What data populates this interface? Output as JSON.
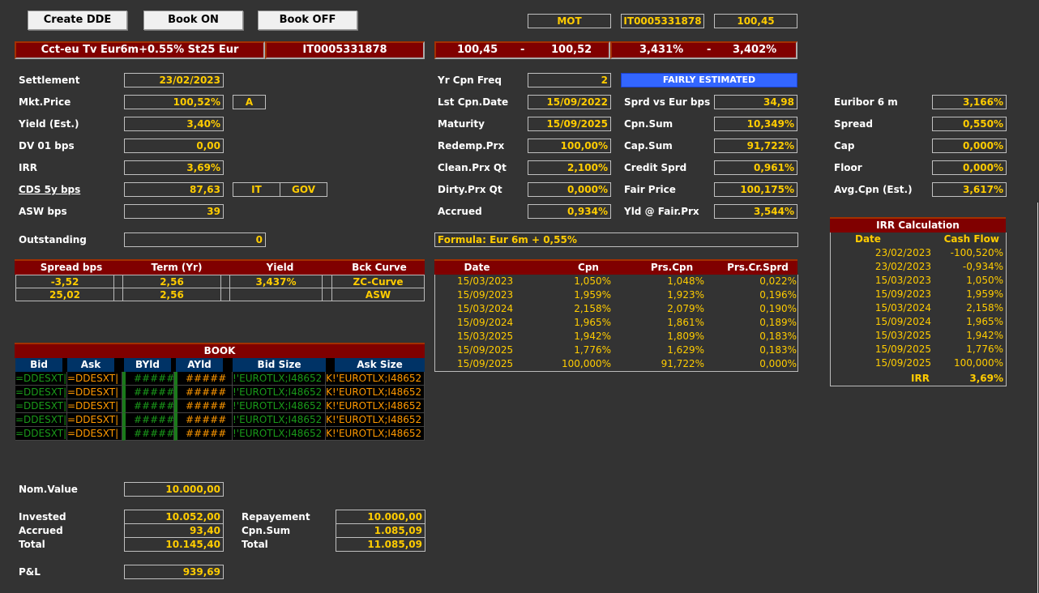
{
  "toolbar": {
    "create_dde": "Create DDE",
    "book_on": "Book ON",
    "book_off": "Book OFF"
  },
  "market": {
    "venue": "MOT",
    "isin": "IT0005331878",
    "last": "100,45"
  },
  "header": {
    "name": "Cct-eu Tv Eur6m+0.55% St25 Eur",
    "isin": "IT0005331878",
    "bid": "100,45",
    "ask": "100,52",
    "sep": "-",
    "bid_yield": "3,431%",
    "ask_yield": "3,402%"
  },
  "left": {
    "settlement": {
      "label": "Settlement",
      "value": "23/02/2023"
    },
    "mkt_price": {
      "label": "Mkt.Price",
      "value": "100,52%",
      "side": "A"
    },
    "yield": {
      "label": "Yield (Est.)",
      "value": "3,40%"
    },
    "dv01": {
      "label": "DV 01 bps",
      "value": "0,00"
    },
    "irr": {
      "label": "IRR",
      "value": "3,69%"
    },
    "cds": {
      "label": "CDS 5y bps",
      "value": "87,63",
      "country": "IT",
      "sector": "GOV"
    },
    "asw": {
      "label": "ASW bps",
      "value": "39"
    },
    "outstanding": {
      "label": "Outstanding",
      "value": "0"
    }
  },
  "middle": {
    "cpn_freq": {
      "label": "Yr Cpn Freq",
      "value": "2"
    },
    "status": "FAIRLY ESTIMATED",
    "last_cpn": {
      "label": "Lst Cpn.Date",
      "value": "15/09/2022"
    },
    "maturity": {
      "label": "Maturity",
      "value": "15/09/2025"
    },
    "redemp": {
      "label": "Redemp.Prx",
      "value": "100,00%"
    },
    "clean": {
      "label": "Clean.Prx Qt",
      "value": "2,100%"
    },
    "dirty": {
      "label": "Dirty.Prx Qt",
      "value": "0,000%"
    },
    "accrued": {
      "label": "Accrued",
      "value": "0,934%"
    },
    "sprd_eur": {
      "label": "Sprd vs Eur bps",
      "value": "34,98"
    },
    "cpn_sum": {
      "label": "Cpn.Sum",
      "value": "10,349%"
    },
    "cap_sum": {
      "label": "Cap.Sum",
      "value": "91,722%"
    },
    "credit": {
      "label": "Credit Sprd",
      "value": "0,961%"
    },
    "fair": {
      "label": "Fair Price",
      "value": "100,175%"
    },
    "yld_fair": {
      "label": "Yld @ Fair.Prx",
      "value": "3,544%"
    },
    "formula": "Formula: Eur 6m + 0,55%"
  },
  "right": {
    "euribor": {
      "label": "Euribor 6 m",
      "value": "3,166%"
    },
    "spread": {
      "label": "Spread",
      "value": "0,550%"
    },
    "cap": {
      "label": "Cap",
      "value": "0,000%"
    },
    "floor": {
      "label": "Floor",
      "value": "0,000%"
    },
    "avg_cpn": {
      "label": "Avg.Cpn (Est.)",
      "value": "3,617%"
    }
  },
  "spread_table": {
    "headers": [
      "Spread bps",
      "Term (Yr)",
      "Yield",
      "Bck Curve"
    ],
    "rows": [
      [
        "-3,52",
        "2,56",
        "3,437%",
        "ZC-Curve"
      ],
      [
        "25,02",
        "2,56",
        "",
        "ASW"
      ]
    ]
  },
  "book": {
    "title": "BOOK",
    "headers": [
      "Bid",
      "Ask",
      "BYld",
      "AYld",
      "Bid Size",
      "Ask Size"
    ],
    "row": [
      "=DDESXT|",
      "=DDESXT|",
      "#####",
      "#####",
      "!'EUROTLX;I48652",
      "K!'EUROTLX;I48652"
    ]
  },
  "cpn_table": {
    "headers": [
      "Date",
      "Cpn",
      "Prs.Cpn",
      "Prs.Cr.Sprd"
    ],
    "rows": [
      [
        "15/03/2023",
        "1,050%",
        "1,048%",
        "0,022%"
      ],
      [
        "15/09/2023",
        "1,959%",
        "1,923%",
        "0,196%"
      ],
      [
        "15/03/2024",
        "2,158%",
        "2,079%",
        "0,190%"
      ],
      [
        "15/09/2024",
        "1,965%",
        "1,861%",
        "0,189%"
      ],
      [
        "15/03/2025",
        "1,942%",
        "1,809%",
        "0,183%"
      ],
      [
        "15/09/2025",
        "1,776%",
        "1,629%",
        "0,183%"
      ],
      [
        "15/09/2025",
        "100,000%",
        "91,722%",
        "0,000%"
      ]
    ]
  },
  "irr_table": {
    "title": "IRR Calculation",
    "headers": [
      "Date",
      "Cash Flow"
    ],
    "rows": [
      [
        "23/02/2023",
        "-100,520%"
      ],
      [
        "23/02/2023",
        "-0,934%"
      ],
      [
        "15/03/2023",
        "1,050%"
      ],
      [
        "15/09/2023",
        "1,959%"
      ],
      [
        "15/03/2024",
        "2,158%"
      ],
      [
        "15/09/2024",
        "1,965%"
      ],
      [
        "15/03/2025",
        "1,942%"
      ],
      [
        "15/09/2025",
        "1,776%"
      ],
      [
        "15/09/2025",
        "100,000%"
      ]
    ],
    "total_label": "IRR",
    "total": "3,69%"
  },
  "pnl": {
    "nom": {
      "label": "Nom.Value",
      "value": "10.000,00"
    },
    "invested": {
      "label": "Invested",
      "value": "10.052,00"
    },
    "accrued": {
      "label": "Accrued",
      "value": "93,40"
    },
    "total_in": {
      "label": "Total",
      "value": "10.145,40"
    },
    "repay": {
      "label": "Repayement",
      "value": "10.000,00"
    },
    "cpn_sum": {
      "label": "Cpn.Sum",
      "value": "1.085,09"
    },
    "total_out": {
      "label": "Total",
      "value": "11.085,09"
    },
    "pl": {
      "label": "P&L",
      "value": "939,69"
    }
  }
}
